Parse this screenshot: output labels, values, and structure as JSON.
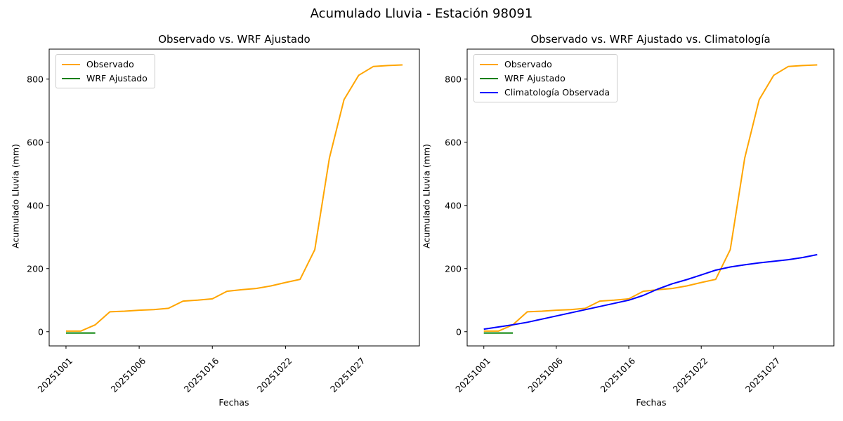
{
  "figure": {
    "title": "Acumulado Lluvia - Estación 98091"
  },
  "chart_data": [
    {
      "type": "line",
      "title": "Observado vs. WRF Ajustado",
      "xlabel": "Fechas",
      "ylabel": "Acumulado Lluvia (mm)",
      "x_count": 24,
      "x_tick_positions": [
        0,
        5,
        10,
        15,
        20
      ],
      "x_tick_labels": [
        "20251001",
        "20251006",
        "20251016",
        "20251022",
        "20251027"
      ],
      "x_tick_rotation": 45,
      "yticks": [
        0,
        200,
        400,
        600,
        800
      ],
      "ylim": [
        -45,
        895
      ],
      "grid": false,
      "legend_position": "upper left",
      "series": [
        {
          "name": "Observado",
          "color": "#FFA500",
          "values": [
            2,
            2,
            22,
            63,
            65,
            68,
            70,
            74,
            97,
            100,
            104,
            128,
            133,
            137,
            145,
            156,
            166,
            260,
            550,
            735,
            812,
            840,
            843,
            845
          ]
        },
        {
          "name": "WRF Ajustado",
          "color": "#008000",
          "values": [
            -4,
            -4,
            -4
          ]
        }
      ]
    },
    {
      "type": "line",
      "title": "Observado vs. WRF Ajustado vs. Climatología",
      "xlabel": "Fechas",
      "ylabel": "Acumulado Lluvia (mm)",
      "x_count": 24,
      "x_tick_positions": [
        0,
        5,
        10,
        15,
        20
      ],
      "x_tick_labels": [
        "20251001",
        "20251006",
        "20251016",
        "20251022",
        "20251027"
      ],
      "x_tick_rotation": 45,
      "yticks": [
        0,
        200,
        400,
        600,
        800
      ],
      "ylim": [
        -45,
        895
      ],
      "grid": false,
      "legend_position": "upper left",
      "series": [
        {
          "name": "Observado",
          "color": "#FFA500",
          "values": [
            2,
            2,
            22,
            63,
            65,
            68,
            70,
            74,
            97,
            100,
            104,
            128,
            133,
            137,
            145,
            156,
            166,
            260,
            550,
            735,
            812,
            840,
            843,
            845
          ]
        },
        {
          "name": "WRF Ajustado",
          "color": "#008000",
          "values": [
            -4,
            -4,
            -4
          ]
        },
        {
          "name": "Climatología Observada",
          "color": "#0000FF",
          "values": [
            8,
            15,
            22,
            30,
            40,
            50,
            60,
            70,
            80,
            90,
            100,
            115,
            135,
            152,
            165,
            180,
            195,
            205,
            212,
            218,
            223,
            228,
            235,
            244
          ]
        }
      ]
    }
  ]
}
